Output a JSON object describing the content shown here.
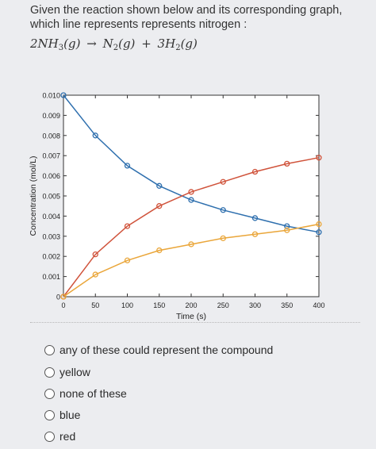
{
  "question": {
    "text": "Given the reaction shown below and its corresponding graph, which line represents represents nitrogen :"
  },
  "equation": {
    "reactant_coef": "2",
    "reactant": "NH",
    "reactant_sub": "3",
    "reactant_state": "(g)",
    "arrow": "→",
    "product1": "N",
    "product1_sub": "2",
    "product1_state": "(g)",
    "plus": "+",
    "product2_coef": "3",
    "product2": "H",
    "product2_sub": "2",
    "product2_state": "(g)"
  },
  "chart_data": {
    "type": "line",
    "title": "",
    "xlabel": "Time (s)",
    "ylabel": "Concentration (mol/L)",
    "xlim": [
      0,
      400
    ],
    "ylim": [
      0,
      0.01
    ],
    "x_ticks": [
      0,
      50,
      100,
      150,
      200,
      250,
      300,
      350,
      400
    ],
    "y_ticks": [
      0,
      0.001,
      0.002,
      0.003,
      0.004,
      0.005,
      0.006,
      0.007,
      0.008,
      0.009,
      0.01
    ],
    "y_tick_labels": [
      "0",
      "0.001",
      "0.002",
      "0.003",
      "0.004",
      "0.005",
      "0.006",
      "0.007",
      "0.008",
      "0.009",
      "0.010"
    ],
    "grid": false,
    "legend": "none",
    "x": [
      0,
      50,
      100,
      150,
      200,
      250,
      300,
      350,
      400
    ],
    "series": [
      {
        "color": "#2e6fae",
        "values": [
          0.01,
          0.008,
          0.0065,
          0.0055,
          0.0048,
          0.0043,
          0.0039,
          0.0035,
          0.0032
        ]
      },
      {
        "color": "#d0533b",
        "values": [
          0,
          0.0021,
          0.0035,
          0.0045,
          0.0052,
          0.0057,
          0.0062,
          0.0066,
          0.0069
        ]
      },
      {
        "color": "#eaa63a",
        "values": [
          0,
          0.0011,
          0.0018,
          0.0023,
          0.0026,
          0.0029,
          0.0031,
          0.0033,
          0.0036
        ]
      }
    ]
  },
  "options": [
    {
      "label": "any of these could represent the compound"
    },
    {
      "label": "yellow"
    },
    {
      "label": "none of these"
    },
    {
      "label": "blue"
    },
    {
      "label": "red"
    }
  ]
}
